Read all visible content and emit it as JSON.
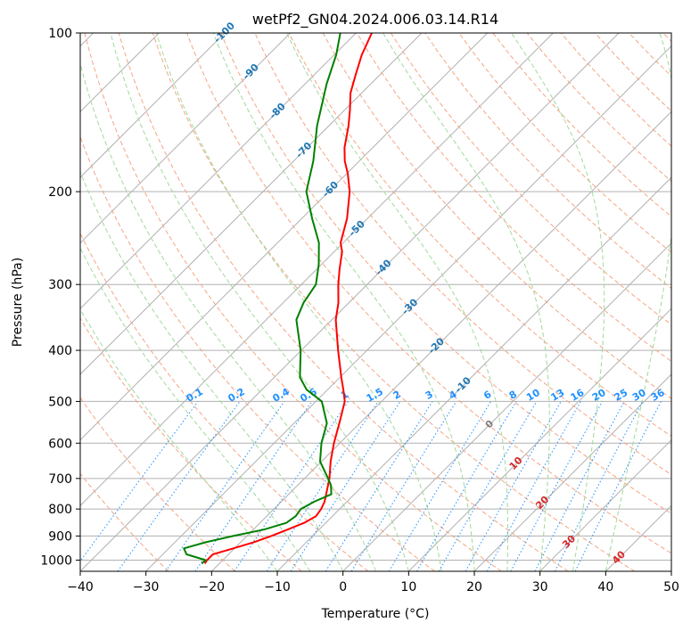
{
  "chart_data": {
    "type": "line",
    "subtype": "skew-T log-p diagram",
    "title": "wetPf2_GN04.2024.006.03.14.R14",
    "xlabel": "Temperature (°C)",
    "ylabel": "Pressure (hPa)",
    "xlim": [
      -40,
      50
    ],
    "ylim": [
      1050,
      100
    ],
    "y_scale": "log",
    "grid": true,
    "x_ticks": [
      -40,
      -30,
      -20,
      -10,
      0,
      10,
      20,
      30,
      40,
      50
    ],
    "x_tick_labels": [
      "−40",
      "−30",
      "−20",
      "−10",
      "0",
      "10",
      "20",
      "30",
      "40",
      "50"
    ],
    "y_ticks": [
      100,
      200,
      300,
      400,
      500,
      600,
      700,
      800,
      900,
      1000
    ],
    "y_tick_labels": [
      "100",
      "200",
      "300",
      "400",
      "500",
      "600",
      "700",
      "800",
      "900",
      "1000"
    ],
    "series": [
      {
        "color": "#ff0000",
        "points": [
          {
            "p": 1015,
            "t": -22.2
          },
          {
            "p": 1000,
            "t": -22.4
          },
          {
            "p": 975,
            "t": -22.4
          },
          {
            "p": 950,
            "t": -20.2
          },
          {
            "p": 925,
            "t": -18.0
          },
          {
            "p": 900,
            "t": -16.3
          },
          {
            "p": 875,
            "t": -14.8
          },
          {
            "p": 850,
            "t": -13.3
          },
          {
            "p": 825,
            "t": -12.5
          },
          {
            "p": 800,
            "t": -12.8
          },
          {
            "p": 775,
            "t": -13.4
          },
          {
            "p": 750,
            "t": -14.3
          },
          {
            "p": 700,
            "t": -16.2
          },
          {
            "p": 650,
            "t": -18.6
          },
          {
            "p": 600,
            "t": -20.9
          },
          {
            "p": 550,
            "t": -23.1
          },
          {
            "p": 500,
            "t": -25.6
          },
          {
            "p": 475,
            "t": -27.6
          },
          {
            "p": 450,
            "t": -29.8
          },
          {
            "p": 400,
            "t": -34.4
          },
          {
            "p": 350,
            "t": -39.4
          },
          {
            "p": 325,
            "t": -41.6
          },
          {
            "p": 300,
            "t": -44.4
          },
          {
            "p": 280,
            "t": -46.6
          },
          {
            "p": 260,
            "t": -48.8
          },
          {
            "p": 250,
            "t": -50.4
          },
          {
            "p": 225,
            "t": -53.1
          },
          {
            "p": 200,
            "t": -56.8
          },
          {
            "p": 185,
            "t": -59.8
          },
          {
            "p": 175,
            "t": -62.2
          },
          {
            "p": 165,
            "t": -64.3
          },
          {
            "p": 150,
            "t": -67.0
          },
          {
            "p": 140,
            "t": -69.2
          },
          {
            "p": 130,
            "t": -71.7
          },
          {
            "p": 120,
            "t": -73.7
          },
          {
            "p": 110,
            "t": -75.8
          },
          {
            "p": 100,
            "t": -77.6
          }
        ]
      },
      {
        "color": "#008000",
        "points": [
          {
            "p": 1015,
            "t": -22.7
          },
          {
            "p": 1000,
            "t": -22.6
          },
          {
            "p": 975,
            "t": -26.4
          },
          {
            "p": 950,
            "t": -27.7
          },
          {
            "p": 925,
            "t": -25.3
          },
          {
            "p": 900,
            "t": -22.1
          },
          {
            "p": 875,
            "t": -18.4
          },
          {
            "p": 850,
            "t": -16.0
          },
          {
            "p": 825,
            "t": -15.6
          },
          {
            "p": 800,
            "t": -15.9
          },
          {
            "p": 775,
            "t": -15.0
          },
          {
            "p": 750,
            "t": -13.5
          },
          {
            "p": 720,
            "t": -15.0
          },
          {
            "p": 700,
            "t": -16.4
          },
          {
            "p": 650,
            "t": -20.2
          },
          {
            "p": 600,
            "t": -22.8
          },
          {
            "p": 550,
            "t": -25.0
          },
          {
            "p": 500,
            "t": -29.1
          },
          {
            "p": 475,
            "t": -33.2
          },
          {
            "p": 450,
            "t": -36.1
          },
          {
            "p": 400,
            "t": -40.1
          },
          {
            "p": 350,
            "t": -45.4
          },
          {
            "p": 325,
            "t": -46.9
          },
          {
            "p": 300,
            "t": -47.8
          },
          {
            "p": 275,
            "t": -50.4
          },
          {
            "p": 250,
            "t": -53.7
          },
          {
            "p": 225,
            "t": -58.4
          },
          {
            "p": 200,
            "t": -63.4
          },
          {
            "p": 175,
            "t": -67.0
          },
          {
            "p": 150,
            "t": -71.8
          },
          {
            "p": 125,
            "t": -76.7
          },
          {
            "p": 110,
            "t": -79.7
          },
          {
            "p": 100,
            "t": -82.4
          }
        ]
      }
    ],
    "isotherm_labels": [
      "-100",
      "-90",
      "-80",
      "-70",
      "-60",
      "-50",
      "-40",
      "-30",
      "-20",
      "-10",
      "0",
      "10",
      "20",
      "30",
      "40"
    ],
    "isotherm_label_values": [
      -100,
      -90,
      -80,
      -70,
      -60,
      -50,
      -40,
      -30,
      -20,
      -10,
      0,
      10,
      20,
      30,
      40
    ],
    "mixing_ratio_labels": [
      "0.1",
      "0.2",
      "0.4",
      "0.6",
      "1",
      "1.5",
      "2",
      "3",
      "4",
      "6",
      "8",
      "10",
      "13",
      "16",
      "20",
      "25",
      "30",
      "36"
    ],
    "mixing_ratio_values": [
      0.1,
      0.2,
      0.4,
      0.6,
      1,
      1.5,
      2,
      3,
      4,
      6,
      8,
      10,
      13,
      16,
      20,
      25,
      30,
      36
    ]
  },
  "colors": {
    "temperature": "#ff0000",
    "dewpoint": "#008000",
    "isotherm_cold": "#1f77b4",
    "isotherm_warm": "#d62728",
    "isotherm_zero": "#7f7f7f",
    "dry_adiabat": "#f4a582",
    "moist_adiabat": "#a1d99b",
    "mixing_ratio": "#1e90ff",
    "grid": "#b0b0b0"
  }
}
